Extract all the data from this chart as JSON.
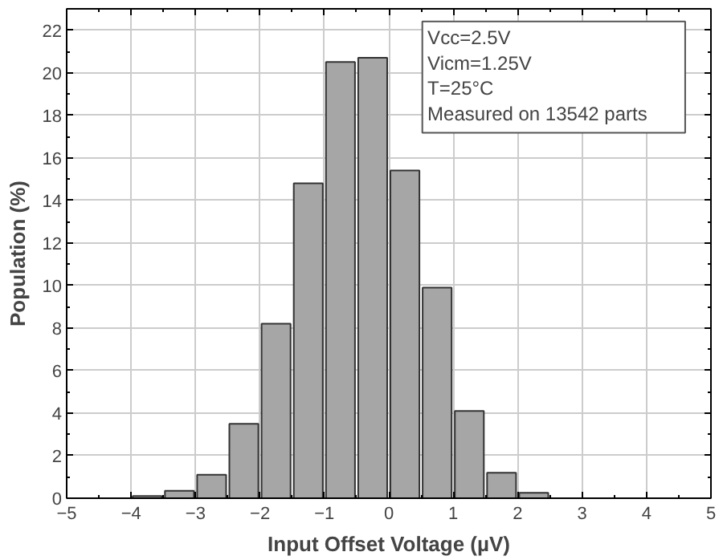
{
  "chart_data": {
    "type": "histogram",
    "xlabel": "Input Offset Voltage (µV)",
    "ylabel": "Population (%)",
    "bins": [
      -4,
      -3.5,
      -3,
      -2.5,
      -2,
      -1.5,
      -1,
      -0.5,
      0,
      0.5,
      1,
      1.5,
      2,
      2.5
    ],
    "values": [
      0.1,
      0.35,
      1.1,
      3.5,
      8.2,
      14.8,
      20.5,
      20.7,
      15.4,
      9.9,
      4.1,
      1.2,
      0.25
    ],
    "color": "#a6a6a6",
    "xlim": [
      -5,
      5
    ],
    "xticks": [
      -5,
      -4,
      -3,
      -2,
      -1,
      0,
      1,
      2,
      3,
      4,
      5
    ],
    "ylim": [
      0,
      23
    ],
    "yticks": [
      0,
      2,
      4,
      6,
      8,
      10,
      12,
      14,
      16,
      18,
      20,
      22
    ],
    "grid": true,
    "annotations": [
      "Vcc=2.5V",
      "Vicm=1.25V",
      "T=25°C",
      "Measured on 13542 parts"
    ]
  }
}
